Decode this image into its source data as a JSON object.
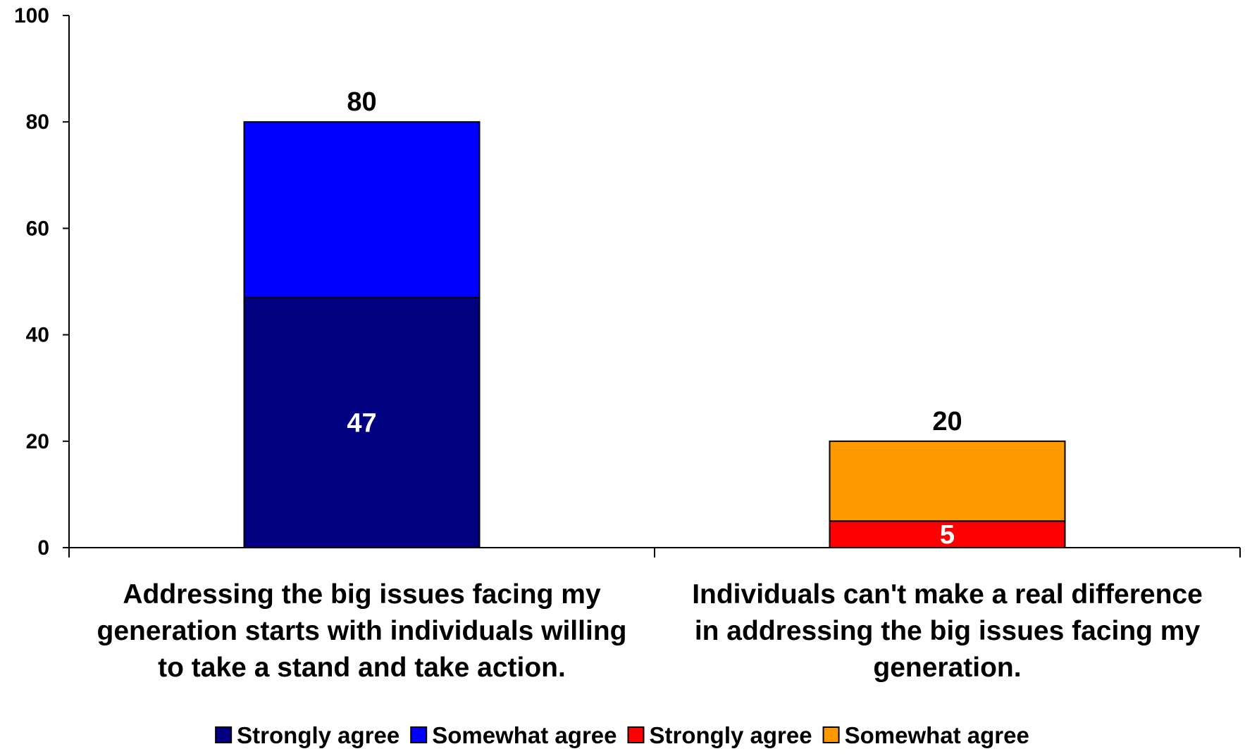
{
  "chart_data": {
    "type": "bar",
    "stacked": true,
    "ylim": [
      0,
      100
    ],
    "yticks": [
      "0",
      "20",
      "40",
      "60",
      "80",
      "100"
    ],
    "grid": false,
    "legend_position": "bottom",
    "categories": [
      {
        "lines": [
          "Addressing the big issues facing my",
          "generation starts with individuals willing",
          "to take a stand and take action."
        ],
        "total": 80,
        "total_label": "80",
        "segments": [
          {
            "name": "Strongly agree",
            "value": 47,
            "color": "#000080",
            "label": "47",
            "label_color": "#ffffff"
          },
          {
            "name": "Somewhat agree",
            "value": 33,
            "color": "#0000ff",
            "label": "",
            "label_color": "#ffffff"
          }
        ]
      },
      {
        "lines": [
          "Individuals can't make a real difference",
          "in addressing the big issues facing my",
          "generation."
        ],
        "total": 20,
        "total_label": "20",
        "segments": [
          {
            "name": "Strongly agree",
            "value": 5,
            "color": "#ff0000",
            "label": "5",
            "label_color": "#ffffff"
          },
          {
            "name": "Somewhat agree",
            "value": 15,
            "color": "#ff9900",
            "label": "",
            "label_color": "#ffffff"
          }
        ]
      }
    ],
    "legend": [
      {
        "label": "Strongly agree",
        "color": "#000080"
      },
      {
        "label": "Somewhat agree",
        "color": "#0000ff"
      },
      {
        "label": "Strongly agree",
        "color": "#ff0000"
      },
      {
        "label": "Somewhat agree",
        "color": "#ff9900"
      }
    ]
  }
}
